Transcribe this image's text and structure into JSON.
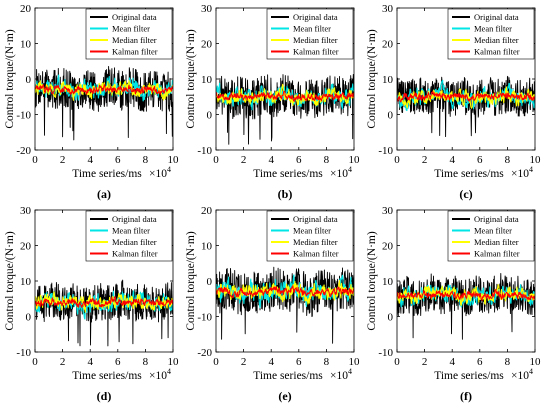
{
  "chart_data": [
    {
      "type": "line",
      "panel_label": "(a)",
      "xlabel": "Time series/ms",
      "ylabel": "Control torque/(N·m)",
      "x_exponent_label": "×10",
      "x_exponent": "4",
      "xlim": [
        0,
        10
      ],
      "ylim": [
        -20,
        20
      ],
      "xticks": [
        0,
        2,
        4,
        6,
        8,
        10
      ],
      "yticks": [
        -20,
        -10,
        0,
        10,
        20
      ],
      "legend_position": "top-right",
      "series": [
        {
          "name": "Original data",
          "color": "#000000",
          "mean": -3,
          "amplitude": 7.5
        },
        {
          "name": "Mean filter",
          "color": "#00e5e5",
          "mean": -3,
          "amplitude": 4.5
        },
        {
          "name": "Median filter",
          "color": "#ffff00",
          "mean": -3,
          "amplitude": 3.5
        },
        {
          "name": "Kalman filter",
          "color": "#ff0000",
          "mean": -3,
          "amplitude": 1.8
        }
      ]
    },
    {
      "type": "line",
      "panel_label": "(b)",
      "xlabel": "Time series/ms",
      "ylabel": "Control torque/(N·m)",
      "x_exponent_label": "×10",
      "x_exponent": "4",
      "xlim": [
        0,
        10
      ],
      "ylim": [
        -10,
        30
      ],
      "xticks": [
        0,
        2,
        4,
        6,
        8,
        10
      ],
      "yticks": [
        -10,
        0,
        10,
        20,
        30
      ],
      "legend_position": "top-right",
      "series": [
        {
          "name": "Original data",
          "color": "#000000",
          "mean": 5,
          "amplitude": 7.5
        },
        {
          "name": "Mean filter",
          "color": "#00e5e5",
          "mean": 5,
          "amplitude": 4.5
        },
        {
          "name": "Median filter",
          "color": "#ffff00",
          "mean": 5,
          "amplitude": 3.5
        },
        {
          "name": "Kalman filter",
          "color": "#ff0000",
          "mean": 5,
          "amplitude": 1.8
        }
      ]
    },
    {
      "type": "line",
      "panel_label": "(c)",
      "xlabel": "Time series/ms",
      "ylabel": "Control torque/(N·m)",
      "x_exponent_label": "×10",
      "x_exponent": "4",
      "xlim": [
        0,
        10
      ],
      "ylim": [
        -10,
        30
      ],
      "xticks": [
        0,
        2,
        4,
        6,
        8,
        10
      ],
      "yticks": [
        -10,
        0,
        10,
        20,
        30
      ],
      "legend_position": "top-right",
      "series": [
        {
          "name": "Original data",
          "color": "#000000",
          "mean": 5,
          "amplitude": 7.0
        },
        {
          "name": "Mean filter",
          "color": "#00e5e5",
          "mean": 5,
          "amplitude": 4.5
        },
        {
          "name": "Median filter",
          "color": "#ffff00",
          "mean": 5,
          "amplitude": 3.5
        },
        {
          "name": "Kalman filter",
          "color": "#ff0000",
          "mean": 5,
          "amplitude": 1.8
        }
      ]
    },
    {
      "type": "line",
      "panel_label": "(d)",
      "xlabel": "Time series/ms",
      "ylabel": "Control torque/(N·m)",
      "x_exponent_label": "×10",
      "x_exponent": "4",
      "xlim": [
        0,
        10
      ],
      "ylim": [
        -10,
        30
      ],
      "xticks": [
        0,
        2,
        4,
        6,
        8,
        10
      ],
      "yticks": [
        -10,
        0,
        10,
        20,
        30
      ],
      "legend_position": "top-right",
      "series": [
        {
          "name": "Original data",
          "color": "#000000",
          "mean": 4,
          "amplitude": 7.0
        },
        {
          "name": "Mean filter",
          "color": "#00e5e5",
          "mean": 4,
          "amplitude": 4.5
        },
        {
          "name": "Median filter",
          "color": "#ffff00",
          "mean": 4,
          "amplitude": 3.5
        },
        {
          "name": "Kalman filter",
          "color": "#ff0000",
          "mean": 4,
          "amplitude": 1.8
        }
      ]
    },
    {
      "type": "line",
      "panel_label": "(e)",
      "xlabel": "Time series/ms",
      "ylabel": "Control torque/(N·m)",
      "x_exponent_label": "×10",
      "x_exponent": "4",
      "xlim": [
        0,
        10
      ],
      "ylim": [
        -20,
        20
      ],
      "xticks": [
        0,
        2,
        4,
        6,
        8,
        10
      ],
      "yticks": [
        -20,
        -10,
        0,
        10,
        20
      ],
      "legend_position": "top-right",
      "series": [
        {
          "name": "Original data",
          "color": "#000000",
          "mean": -3,
          "amplitude": 8.0
        },
        {
          "name": "Mean filter",
          "color": "#00e5e5",
          "mean": -3,
          "amplitude": 5.0
        },
        {
          "name": "Median filter",
          "color": "#ffff00",
          "mean": -3,
          "amplitude": 4.0
        },
        {
          "name": "Kalman filter",
          "color": "#ff0000",
          "mean": -3,
          "amplitude": 2.0
        }
      ]
    },
    {
      "type": "line",
      "panel_label": "(f)",
      "xlabel": "Time series/ms",
      "ylabel": "Control torque/(N·m)",
      "x_exponent_label": "×10",
      "x_exponent": "4",
      "xlim": [
        0,
        10
      ],
      "ylim": [
        -10,
        30
      ],
      "xticks": [
        0,
        2,
        4,
        6,
        8,
        10
      ],
      "yticks": [
        -10,
        0,
        10,
        20,
        30
      ],
      "legend_position": "top-right",
      "series": [
        {
          "name": "Original data",
          "color": "#000000",
          "mean": 6,
          "amplitude": 7.0
        },
        {
          "name": "Mean filter",
          "color": "#00e5e5",
          "mean": 6,
          "amplitude": 4.5
        },
        {
          "name": "Median filter",
          "color": "#ffff00",
          "mean": 6,
          "amplitude": 3.5
        },
        {
          "name": "Kalman filter",
          "color": "#ff0000",
          "mean": 6,
          "amplitude": 1.8
        }
      ]
    }
  ]
}
